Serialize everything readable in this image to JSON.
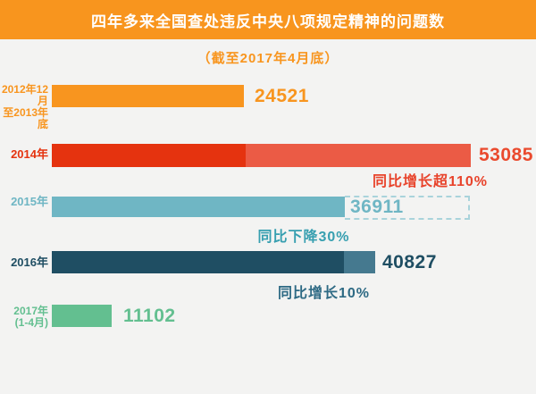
{
  "header": {
    "title": "四年多来全国查处违反中央八项规定精神的问题数",
    "subtitle": "（截至2017年4月底）",
    "band_color": "#F8951E",
    "title_color": "#FFFFFF"
  },
  "chart_data": {
    "type": "bar",
    "orientation": "horizontal",
    "title": "四年多来全国查处违反中央八项规定精神的问题数",
    "subtitle": "（截至2017年4月底）",
    "categories": [
      "2012年12月至2013年底",
      "2014年",
      "2015年",
      "2016年",
      "2017年(1-4月)"
    ],
    "values": [
      24521,
      53085,
      36911,
      40827,
      11102
    ],
    "annotations": [
      "",
      "同比增长超110%",
      "同比下降30%",
      "同比增长10%",
      ""
    ],
    "bar_colors": [
      "#F8951F",
      "#E5330F/#EB5B45",
      "#6FB6C4",
      "#1F4E63/#45798F",
      "#63BF90"
    ],
    "xlim": [
      0,
      55000
    ],
    "grid": false,
    "legend": "none",
    "visual_notes": "2014 bar: darker segment marks prior-year level (24521), lighter extension shows growth to 53085. 2015 bar: dashed outline box extends from bar end to prior-year level (53085) marking decline. 2016 bar: dark segment to prior-year level (36911), lighter tip to 40827."
  },
  "rows": [
    {
      "label_line1": "2012年12月",
      "label_line2": "至2013年底",
      "value": "24521"
    },
    {
      "label_line1": "2014年",
      "value": "53085",
      "annotation": "同比增长超110%"
    },
    {
      "label_line1": "2015年",
      "value": "36911",
      "annotation": "同比下降30%"
    },
    {
      "label_line1": "2016年",
      "value": "40827",
      "annotation": "同比增长10%"
    },
    {
      "label_line1": "2017年",
      "label_line2": "(1-4月)",
      "value": "11102"
    }
  ],
  "colors": {
    "background": "#F3F3F2",
    "orange": "#F8951F",
    "red_dark": "#E5330F",
    "red_light": "#EB5B45",
    "teal": "#6FB6C4",
    "teal_dash": "#A9D3DB",
    "teal_annotation": "#379FB0",
    "navy_dark": "#1F4E63",
    "navy_light": "#45798F",
    "green": "#63BF90"
  }
}
